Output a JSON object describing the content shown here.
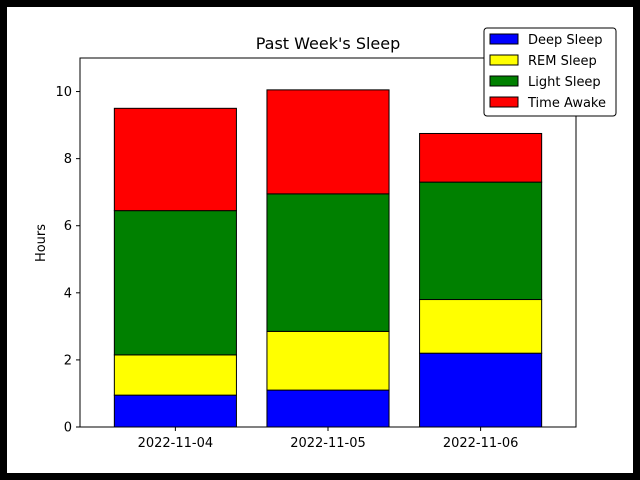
{
  "chart_data": {
    "type": "bar",
    "stacked": true,
    "title": "Past Week's Sleep",
    "xlabel": "",
    "ylabel": "Hours",
    "categories": [
      "2022-11-04",
      "2022-11-05",
      "2022-11-06"
    ],
    "ylim": [
      0,
      11
    ],
    "yticks": [
      0,
      2,
      4,
      6,
      8,
      10
    ],
    "grid": false,
    "legend_position": "top-right",
    "series": [
      {
        "name": "Deep Sleep",
        "color": "#0000ff",
        "values": [
          0.95,
          1.1,
          2.2
        ]
      },
      {
        "name": "REM Sleep",
        "color": "#ffff00",
        "values": [
          1.2,
          1.75,
          1.6
        ]
      },
      {
        "name": "Light Sleep",
        "color": "#008000",
        "values": [
          4.3,
          4.1,
          3.5
        ]
      },
      {
        "name": "Time Awake",
        "color": "#ff0000",
        "values": [
          3.05,
          3.1,
          1.45
        ]
      }
    ]
  }
}
